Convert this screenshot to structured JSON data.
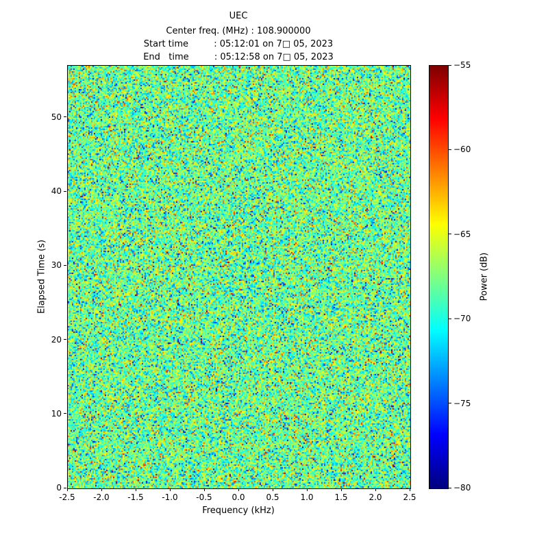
{
  "chart_data": {
    "type": "heatmap",
    "title": "UEC",
    "subtitle_lines": [
      "Center freq. (MHz) : 108.900000",
      "Start time         : 05:12:01 on 7□ 05, 2023",
      "End   time         : 05:12:58 on 7□ 05, 2023"
    ],
    "xlabel": "Frequency (kHz)",
    "ylabel": "Elapsed Time (s)",
    "x_range": [
      -2.5,
      2.5
    ],
    "y_range": [
      0,
      57
    ],
    "x_ticks": [
      -2.5,
      -2.0,
      -1.5,
      -1.0,
      -0.5,
      0.0,
      0.5,
      1.0,
      1.5,
      2.0,
      2.5
    ],
    "x_tick_labels": [
      "-2.5",
      "-2.0",
      "-1.5",
      "-1.0",
      "-0.5",
      "0.0",
      "0.5",
      "1.0",
      "1.5",
      "2.0",
      "2.5"
    ],
    "y_ticks": [
      0,
      10,
      20,
      30,
      40,
      50
    ],
    "y_tick_labels": [
      "0",
      "10",
      "20",
      "30",
      "40",
      "50"
    ],
    "colorbar": {
      "label": "Power (dB)",
      "range": [
        -80,
        -55
      ],
      "ticks": [
        -55,
        -60,
        -65,
        -70,
        -75,
        -80
      ],
      "tick_labels": [
        "−55",
        "−60",
        "−65",
        "−70",
        "−75",
        "−80"
      ],
      "colormap": "jet"
    },
    "heatmap": {
      "description": "FM-band waterfall of broadband noise: dense random speckle over the full 5 kHz span and 57 s duration, no coherent signal; power mostly between -75 and -62 dB (green/cyan in jet colormap) with scattered red/orange and blue outliers",
      "mean_db": -68,
      "std_db": 3.2,
      "seed": 42,
      "grid_on": false
    }
  }
}
